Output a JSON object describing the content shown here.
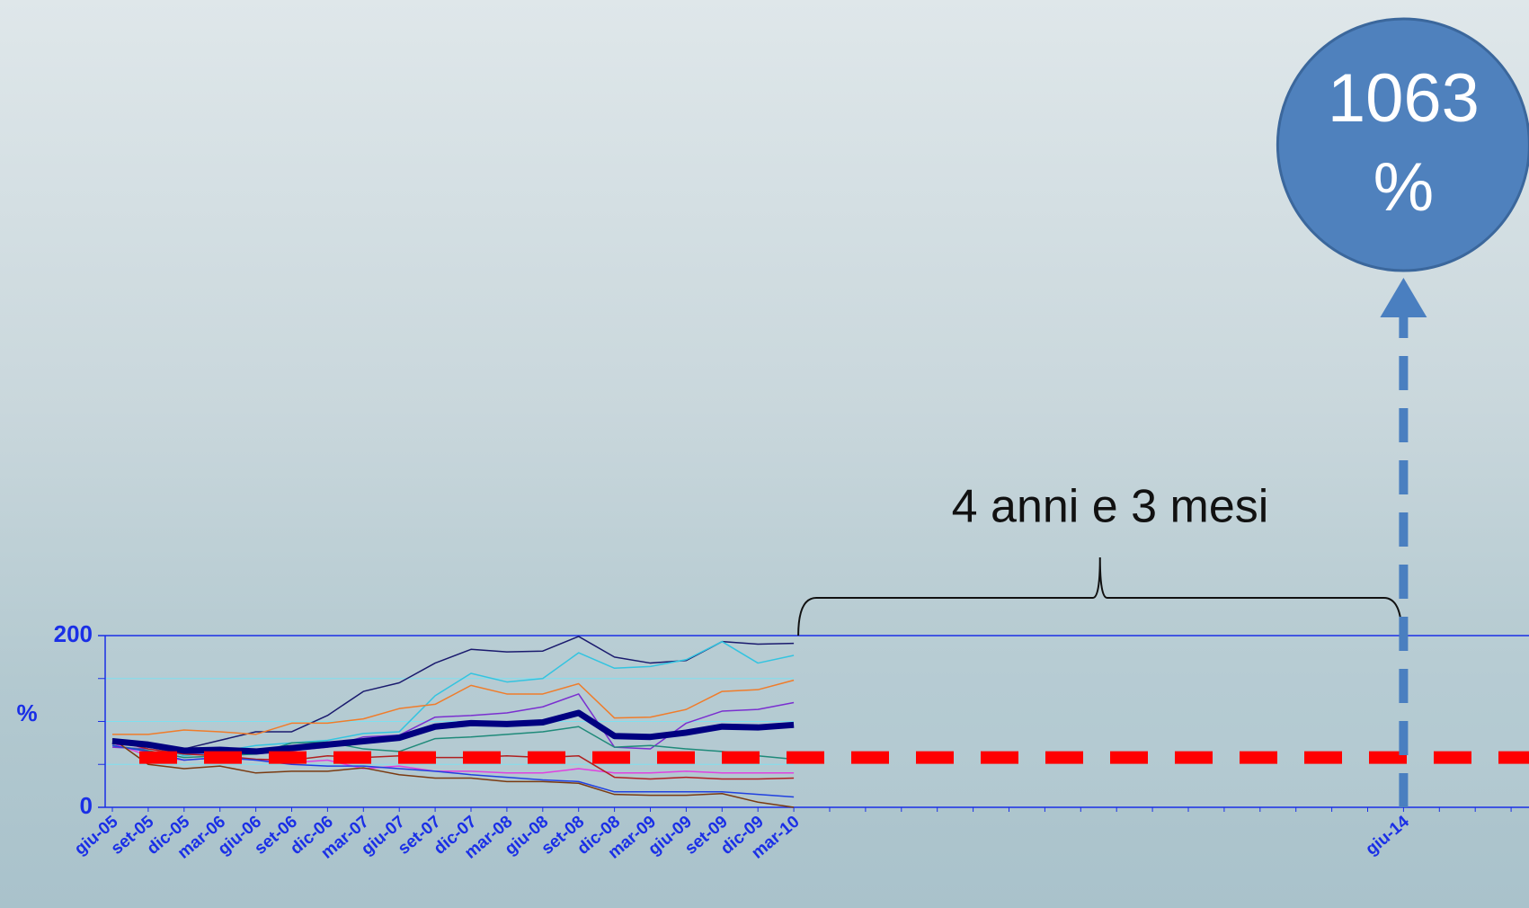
{
  "chart_data": {
    "type": "line",
    "ylabel": "%",
    "annotation": "4 anni e 3 mesi",
    "callout": "1063 %",
    "categories": [
      "giu-05",
      "set-05",
      "dic-05",
      "mar-06",
      "giu-06",
      "set-06",
      "dic-06",
      "mar-07",
      "giu-07",
      "set-07",
      "dic-07",
      "mar-08",
      "giu-08",
      "set-08",
      "dic-08",
      "mar-09",
      "giu-09",
      "set-09",
      "dic-09",
      "mar-10",
      null,
      null,
      null,
      null,
      null,
      null,
      null,
      null,
      null,
      null,
      null,
      null,
      null,
      null,
      null,
      null,
      "giu-14",
      null,
      null,
      null
    ],
    "ylim": [
      0,
      200
    ],
    "yticks": [
      0,
      200
    ],
    "grid_lines": [
      50,
      100,
      150
    ],
    "reference_line": {
      "value": 58,
      "color": "#ff0000"
    },
    "series": [
      {
        "color": "#1a1a6e",
        "width": 1.5,
        "values": [
          75,
          70,
          68,
          78,
          88,
          88,
          107,
          135,
          145,
          168,
          184,
          181,
          182,
          199,
          175,
          168,
          171,
          193,
          190,
          191,
          null,
          null,
          null,
          null,
          null,
          null,
          null,
          null,
          null,
          null,
          null,
          null,
          null,
          null,
          null,
          null,
          null,
          null,
          null,
          null
        ]
      },
      {
        "color": "#33c4e0",
        "width": 1.5,
        "values": [
          80,
          72,
          60,
          65,
          72,
          75,
          78,
          86,
          88,
          130,
          156,
          146,
          150,
          180,
          162,
          164,
          172,
          193,
          168,
          177,
          null,
          null,
          null,
          null,
          null,
          null,
          null,
          null,
          null,
          null,
          null,
          null,
          null,
          null,
          null,
          null,
          null,
          null,
          null,
          null
        ]
      },
      {
        "color": "#f07c2a",
        "width": 1.5,
        "values": [
          85,
          85,
          90,
          88,
          85,
          98,
          98,
          103,
          115,
          120,
          142,
          132,
          132,
          144,
          104,
          105,
          114,
          135,
          137,
          148,
          null,
          null,
          null,
          null,
          null,
          null,
          null,
          null,
          null,
          null,
          null,
          null,
          null,
          null,
          null,
          null,
          null,
          null,
          null,
          null
        ]
      },
      {
        "color": "#7a2fd0",
        "width": 1.5,
        "values": [
          70,
          68,
          62,
          64,
          62,
          66,
          70,
          82,
          84,
          105,
          107,
          110,
          117,
          132,
          70,
          68,
          98,
          112,
          114,
          122,
          null,
          null,
          null,
          null,
          null,
          null,
          null,
          null,
          null,
          null,
          null,
          null,
          null,
          null,
          null,
          null,
          null,
          null,
          null,
          null
        ]
      },
      {
        "color": "#1f8a7a",
        "width": 1.5,
        "values": [
          72,
          66,
          58,
          60,
          62,
          75,
          76,
          68,
          65,
          80,
          82,
          85,
          88,
          94,
          70,
          72,
          68,
          65,
          60,
          56,
          null,
          null,
          null,
          null,
          null,
          null,
          null,
          null,
          null,
          null,
          null,
          null,
          null,
          null,
          null,
          null,
          null,
          null,
          null,
          null
        ]
      },
      {
        "color": "#e040e0",
        "width": 1.5,
        "values": [
          75,
          60,
          55,
          58,
          55,
          52,
          55,
          45,
          48,
          42,
          42,
          40,
          40,
          45,
          40,
          40,
          42,
          40,
          40,
          40,
          null,
          null,
          null,
          null,
          null,
          null,
          null,
          null,
          null,
          null,
          null,
          null,
          null,
          null,
          null,
          null,
          null,
          null,
          null,
          null
        ]
      },
      {
        "color": "#b02020",
        "width": 1.5,
        "values": [
          78,
          68,
          62,
          60,
          56,
          55,
          60,
          58,
          60,
          58,
          58,
          60,
          58,
          60,
          35,
          33,
          35,
          33,
          33,
          34,
          null,
          null,
          null,
          null,
          null,
          null,
          null,
          null,
          null,
          null,
          null,
          null,
          null,
          null,
          null,
          null,
          null,
          null,
          null,
          null
        ]
      },
      {
        "color": "#2040e0",
        "width": 1.5,
        "values": [
          72,
          65,
          55,
          58,
          55,
          50,
          48,
          48,
          45,
          42,
          38,
          35,
          32,
          30,
          18,
          18,
          18,
          18,
          15,
          12,
          null,
          null,
          null,
          null,
          null,
          null,
          null,
          null,
          null,
          null,
          null,
          null,
          null,
          null,
          null,
          null,
          null,
          null,
          null,
          null
        ]
      },
      {
        "color": "#7a3a10",
        "width": 1.5,
        "values": [
          80,
          50,
          45,
          48,
          40,
          42,
          42,
          46,
          38,
          34,
          34,
          30,
          30,
          28,
          15,
          14,
          14,
          16,
          6,
          0,
          null,
          null,
          null,
          null,
          null,
          null,
          null,
          null,
          null,
          null,
          null,
          null,
          null,
          null,
          null,
          null,
          null,
          null,
          null,
          null
        ]
      },
      {
        "color": "#000080",
        "width": 7,
        "values": [
          77,
          73,
          66,
          67,
          65,
          69,
          73,
          77,
          81,
          94,
          98,
          97,
          99,
          110,
          83,
          82,
          87,
          94,
          93,
          96,
          null,
          null,
          null,
          null,
          null,
          null,
          null,
          null,
          null,
          null,
          null,
          null,
          null,
          null,
          null,
          null,
          null,
          null,
          null,
          null
        ]
      }
    ]
  }
}
